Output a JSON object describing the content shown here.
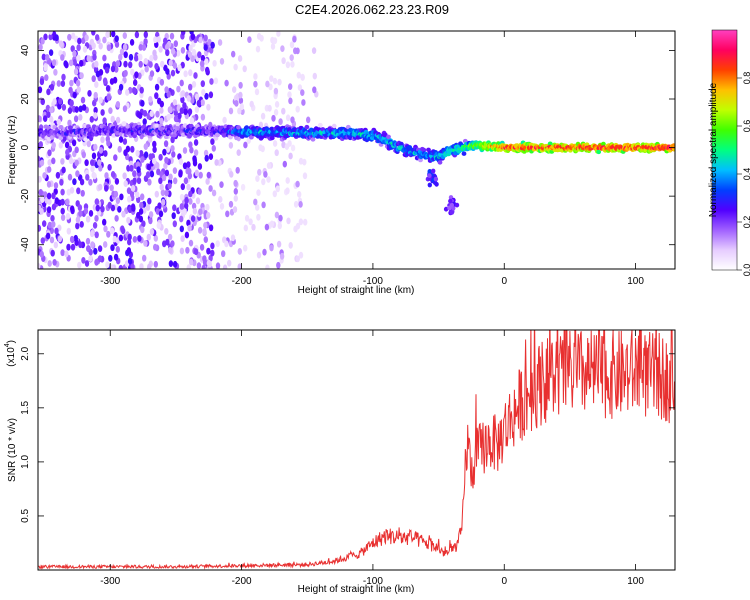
{
  "title": "C2E4.2026.062.23.23.R09",
  "chart_data": [
    {
      "type": "heatmap",
      "title": "C2E4.2026.062.23.23.R09",
      "xlabel": "Height of straight line (km)",
      "ylabel": "Frequency (Hz)",
      "xlim": [
        -355,
        130
      ],
      "ylim": [
        -50,
        48
      ],
      "xticks": [
        -300,
        -200,
        -100,
        0,
        100
      ],
      "yticks": [
        -40,
        -20,
        0,
        20,
        40
      ],
      "xtick_labels": [
        "-300",
        "-200",
        "-100",
        "0",
        "100"
      ],
      "ytick_labels": [
        "-40",
        "-20",
        "0",
        "20",
        "40"
      ],
      "colorbar": {
        "label": "Normalized spectral amplitude",
        "range": [
          0,
          1
        ],
        "ticks": [
          0.0,
          0.2,
          0.4,
          0.6,
          0.8
        ],
        "tick_labels": [
          "0.0",
          "0.2",
          "0.4",
          "0.6",
          "0.8"
        ],
        "colors": [
          "#ffffff",
          "#e6ccff",
          "#a060ff",
          "#5000ff",
          "#0040ff",
          "#00bfff",
          "#00ff80",
          "#40ff00",
          "#c0ff00",
          "#ffc000",
          "#ff4000",
          "#ff0060",
          "#ff40c0"
        ]
      },
      "ridge": [
        {
          "x": -350,
          "f": 6
        },
        {
          "x": -300,
          "f": 7
        },
        {
          "x": -250,
          "f": 7
        },
        {
          "x": -200,
          "f": 6.5
        },
        {
          "x": -150,
          "f": 6
        },
        {
          "x": -120,
          "f": 6
        },
        {
          "x": -100,
          "f": 5
        },
        {
          "x": -90,
          "f": 3
        },
        {
          "x": -80,
          "f": 0
        },
        {
          "x": -70,
          "f": -2
        },
        {
          "x": -60,
          "f": -3
        },
        {
          "x": -50,
          "f": -4
        },
        {
          "x": -40,
          "f": -1
        },
        {
          "x": -30,
          "f": 0
        },
        {
          "x": -20,
          "f": 1
        },
        {
          "x": 0,
          "f": 0
        },
        {
          "x": 50,
          "f": 0
        },
        {
          "x": 100,
          "f": 0
        },
        {
          "x": 130,
          "f": 0
        }
      ],
      "ridge_amplitude": [
        {
          "x": -350,
          "a": 0.25
        },
        {
          "x": -220,
          "a": 0.25
        },
        {
          "x": -200,
          "a": 0.4
        },
        {
          "x": -100,
          "a": 0.45
        },
        {
          "x": -60,
          "a": 0.4
        },
        {
          "x": -30,
          "a": 0.55
        },
        {
          "x": 0,
          "a": 0.85
        },
        {
          "x": 130,
          "a": 0.9
        }
      ],
      "features": [
        {
          "x": -55,
          "f": -12,
          "a": 0.3
        },
        {
          "x": -40,
          "f": -24,
          "a": 0.25
        }
      ]
    },
    {
      "type": "line",
      "xlabel": "Height of straight line (km)",
      "ylabel": "SNR (10 * v/v)",
      "y_multiplier": "(x10",
      "y_multiplier_exp": "4",
      "y_multiplier_close": ")",
      "xlim": [
        -355,
        130
      ],
      "ylim": [
        0,
        22200
      ],
      "xticks": [
        -300,
        -200,
        -100,
        0,
        100
      ],
      "yticks": [
        5000,
        10000,
        15000,
        20000
      ],
      "xtick_labels": [
        "-300",
        "-200",
        "-100",
        "0",
        "100"
      ],
      "ytick_labels": [
        "0.5",
        "1.0",
        "1.5",
        "2.0"
      ],
      "color": "#e83030",
      "series": [
        {
          "name": "SNR",
          "x": [
            -355,
            -250,
            -200,
            -150,
            -130,
            -110,
            -100,
            -90,
            -80,
            -70,
            -60,
            -50,
            -45,
            -40,
            -35,
            -32,
            -30,
            -28,
            -25,
            -20,
            -15,
            -10,
            -5,
            0,
            10,
            20,
            30,
            40,
            60,
            80,
            100,
            110,
            120,
            130
          ],
          "values": [
            300,
            300,
            400,
            500,
            800,
            1500,
            2500,
            3200,
            3000,
            3000,
            2500,
            2000,
            1500,
            1800,
            2500,
            4000,
            9000,
            12000,
            9000,
            11000,
            11500,
            12000,
            11500,
            13000,
            15000,
            16500,
            17500,
            18000,
            18200,
            18000,
            18300,
            18000,
            17800,
            17500
          ]
        }
      ]
    }
  ]
}
